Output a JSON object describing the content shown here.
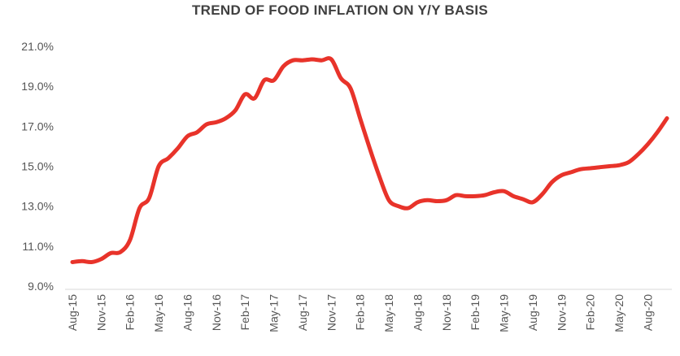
{
  "chart_data": {
    "type": "line",
    "title": "TREND OF FOOD INFLATION ON Y/Y BASIS",
    "xlabel": "",
    "ylabel": "",
    "ylim": [
      9.0,
      21.0
    ],
    "y_ticks": [
      "9.0%",
      "11.0%",
      "13.0%",
      "15.0%",
      "17.0%",
      "19.0%",
      "21.0%"
    ],
    "y_tick_values": [
      9,
      11,
      13,
      15,
      17,
      19,
      21
    ],
    "x_tick_labels": [
      "Aug-15",
      "Nov-15",
      "Feb-16",
      "May-16",
      "Aug-16",
      "Nov-16",
      "Feb-17",
      "May-17",
      "Aug-17",
      "Nov-17",
      "Feb-18",
      "May-18",
      "Aug-18",
      "Nov-18",
      "Feb-19",
      "May-19",
      "Aug-19",
      "Nov-19",
      "Feb-20",
      "May-20",
      "Aug-20"
    ],
    "grid": false,
    "legend": "none",
    "line_color": "#e8332a",
    "series": [
      {
        "x": [
          "Aug-15",
          "Sep-15",
          "Oct-15",
          "Nov-15",
          "Dec-15",
          "Jan-16",
          "Feb-16",
          "Mar-16",
          "Apr-16",
          "May-16",
          "Jun-16",
          "Jul-16",
          "Aug-16",
          "Sep-16",
          "Oct-16",
          "Nov-16",
          "Dec-16",
          "Jan-17",
          "Feb-17",
          "Mar-17",
          "Apr-17",
          "May-17",
          "Jun-17",
          "Jul-17",
          "Aug-17",
          "Sep-17",
          "Oct-17",
          "Nov-17",
          "Dec-17",
          "Jan-18",
          "Feb-18",
          "Mar-18",
          "Apr-18",
          "May-18",
          "Jun-18",
          "Jul-18",
          "Aug-18",
          "Sep-18",
          "Oct-18",
          "Nov-18",
          "Dec-18",
          "Jan-19",
          "Feb-19",
          "Mar-19",
          "Apr-19",
          "May-19",
          "Jun-19",
          "Jul-19",
          "Aug-19",
          "Sep-19",
          "Oct-19",
          "Nov-19",
          "Dec-19",
          "Jan-20",
          "Feb-20",
          "Mar-20",
          "Apr-20",
          "May-20",
          "Jun-20",
          "Jul-20",
          "Aug-20",
          "Sep-20",
          "Oct-20"
        ],
        "values": [
          10.2,
          10.25,
          10.2,
          10.35,
          10.65,
          10.7,
          11.3,
          12.9,
          13.4,
          15.0,
          15.4,
          15.9,
          16.5,
          16.7,
          17.1,
          17.2,
          17.4,
          17.8,
          18.6,
          18.4,
          19.3,
          19.3,
          20.0,
          20.3,
          20.3,
          20.35,
          20.3,
          20.35,
          19.4,
          18.9,
          17.4,
          15.9,
          14.5,
          13.3,
          13.0,
          12.9,
          13.2,
          13.3,
          13.25,
          13.3,
          13.55,
          13.5,
          13.5,
          13.55,
          13.7,
          13.75,
          13.5,
          13.35,
          13.2,
          13.6,
          14.2,
          14.55,
          14.7,
          14.85,
          14.9,
          14.95,
          15.0,
          15.05,
          15.2,
          15.6,
          16.1,
          16.7,
          17.4
        ]
      }
    ]
  }
}
